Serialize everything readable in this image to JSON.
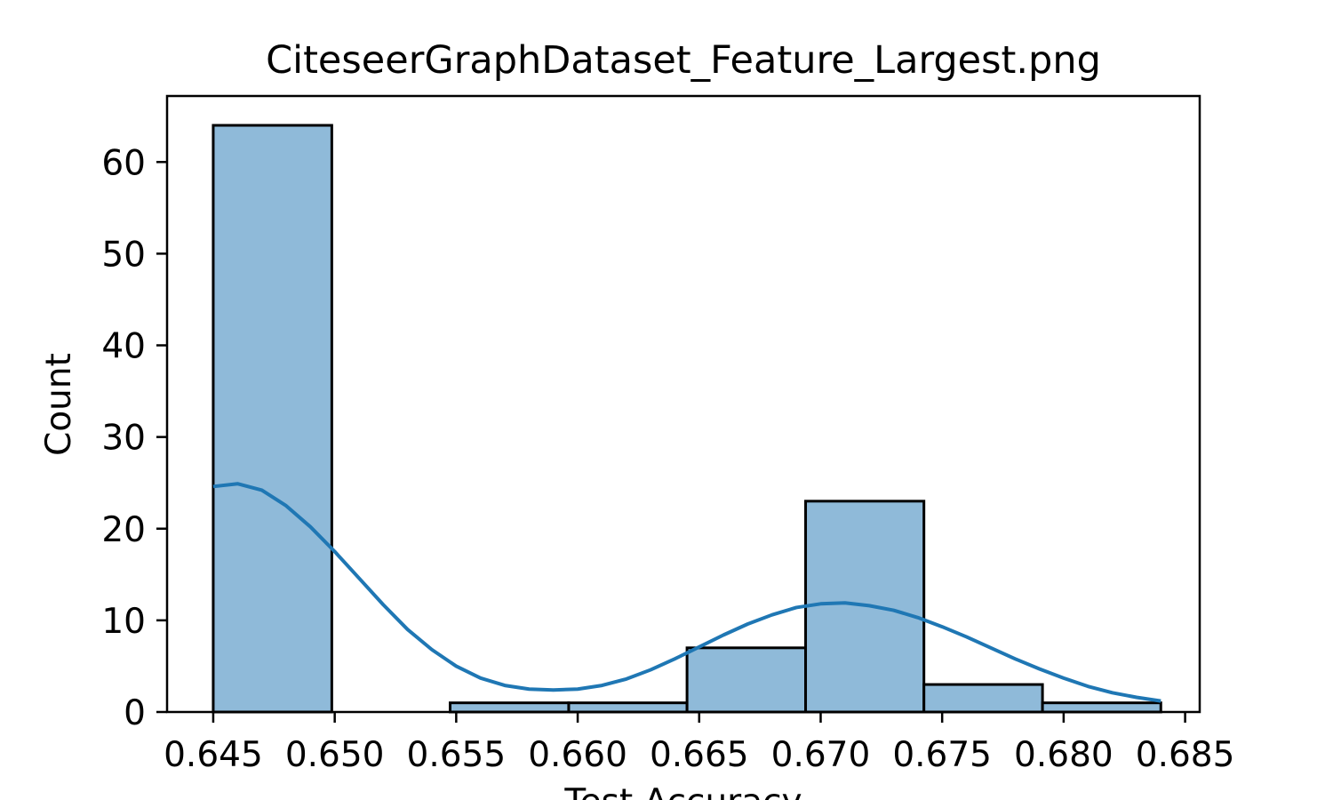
{
  "chart_data": {
    "type": "histogram",
    "title": "CiteseerGraphDataset_Feature_Largest.png",
    "xlabel": "Test Accuracy",
    "ylabel": "Count",
    "xlim": [
      0.6431,
      0.6856
    ],
    "ylim": [
      0,
      67.2
    ],
    "x_ticks": [
      "0.645",
      "0.650",
      "0.655",
      "0.660",
      "0.665",
      "0.670",
      "0.675",
      "0.680",
      "0.685"
    ],
    "x_tick_values": [
      0.645,
      0.65,
      0.655,
      0.66,
      0.665,
      0.67,
      0.675,
      0.68,
      0.685
    ],
    "y_ticks": [
      "0",
      "10",
      "20",
      "30",
      "40",
      "50",
      "60"
    ],
    "y_tick_values": [
      0,
      10,
      20,
      30,
      40,
      50,
      60
    ],
    "bin_edges": [
      0.645,
      0.64988,
      0.65475,
      0.65963,
      0.6645,
      0.66938,
      0.67425,
      0.67913,
      0.684
    ],
    "counts": [
      64,
      0,
      1,
      1,
      7,
      23,
      3,
      1
    ],
    "kde": {
      "x": [
        0.645,
        0.646,
        0.647,
        0.648,
        0.649,
        0.65,
        0.651,
        0.652,
        0.653,
        0.654,
        0.655,
        0.656,
        0.657,
        0.658,
        0.659,
        0.66,
        0.661,
        0.662,
        0.663,
        0.664,
        0.665,
        0.666,
        0.667,
        0.668,
        0.669,
        0.67,
        0.671,
        0.672,
        0.673,
        0.674,
        0.675,
        0.676,
        0.677,
        0.678,
        0.679,
        0.68,
        0.681,
        0.682,
        0.683,
        0.684
      ],
      "y": [
        24.6,
        24.9,
        24.2,
        22.5,
        20.2,
        17.5,
        14.6,
        11.7,
        9.0,
        6.8,
        5.0,
        3.7,
        2.9,
        2.5,
        2.4,
        2.5,
        2.9,
        3.6,
        4.6,
        5.8,
        7.1,
        8.4,
        9.6,
        10.6,
        11.4,
        11.8,
        11.9,
        11.6,
        11.1,
        10.3,
        9.3,
        8.2,
        7.0,
        5.8,
        4.7,
        3.7,
        2.8,
        2.1,
        1.6,
        1.2
      ]
    },
    "bar_fill": "#8fbad9",
    "bar_edge": "#000000",
    "kde_color": "#1f77b4",
    "grid": false,
    "legend": "none"
  }
}
